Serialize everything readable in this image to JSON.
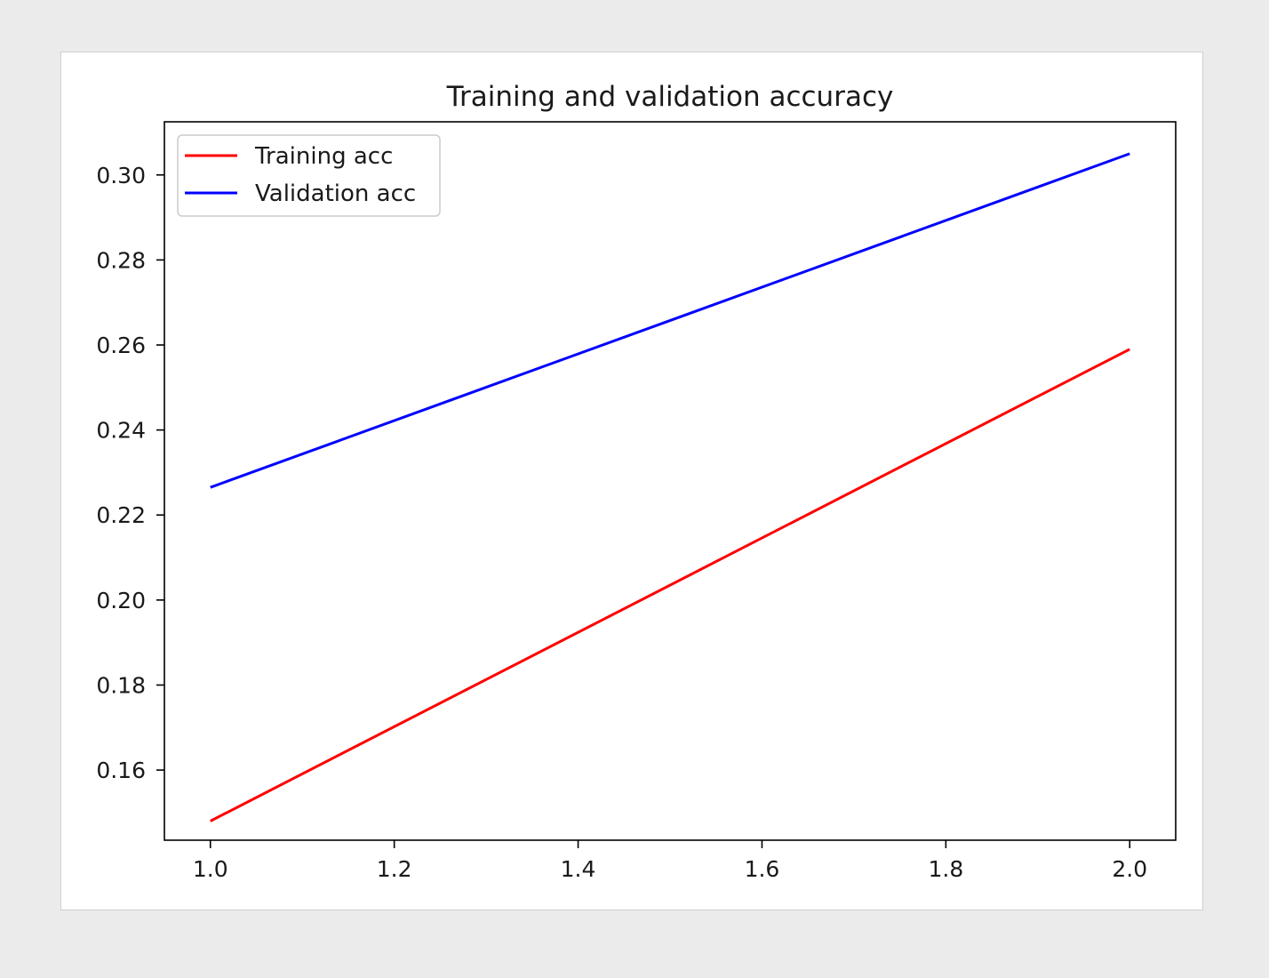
{
  "chart_data": {
    "type": "line",
    "title": "Training and validation accuracy",
    "xlabel": "",
    "ylabel": "",
    "xlim": [
      0.95,
      2.05
    ],
    "ylim": [
      0.1435,
      0.3125
    ],
    "xticks": [
      1.0,
      1.2,
      1.4,
      1.6,
      1.8,
      2.0
    ],
    "xtick_labels": [
      "1.0",
      "1.2",
      "1.4",
      "1.6",
      "1.8",
      "2.0"
    ],
    "yticks": [
      0.16,
      0.18,
      0.2,
      0.22,
      0.24,
      0.26,
      0.28,
      0.3
    ],
    "ytick_labels": [
      "0.16",
      "0.18",
      "0.20",
      "0.22",
      "0.24",
      "0.26",
      "0.28",
      "0.30"
    ],
    "grid": false,
    "legend_position": "top-left",
    "series": [
      {
        "name": "Training acc",
        "color": "#ff0000",
        "x": [
          1.0,
          2.0
        ],
        "y": [
          0.148,
          0.259
        ]
      },
      {
        "name": "Validation acc",
        "color": "#0000ff",
        "x": [
          1.0,
          2.0
        ],
        "y": [
          0.2265,
          0.305
        ]
      }
    ]
  }
}
